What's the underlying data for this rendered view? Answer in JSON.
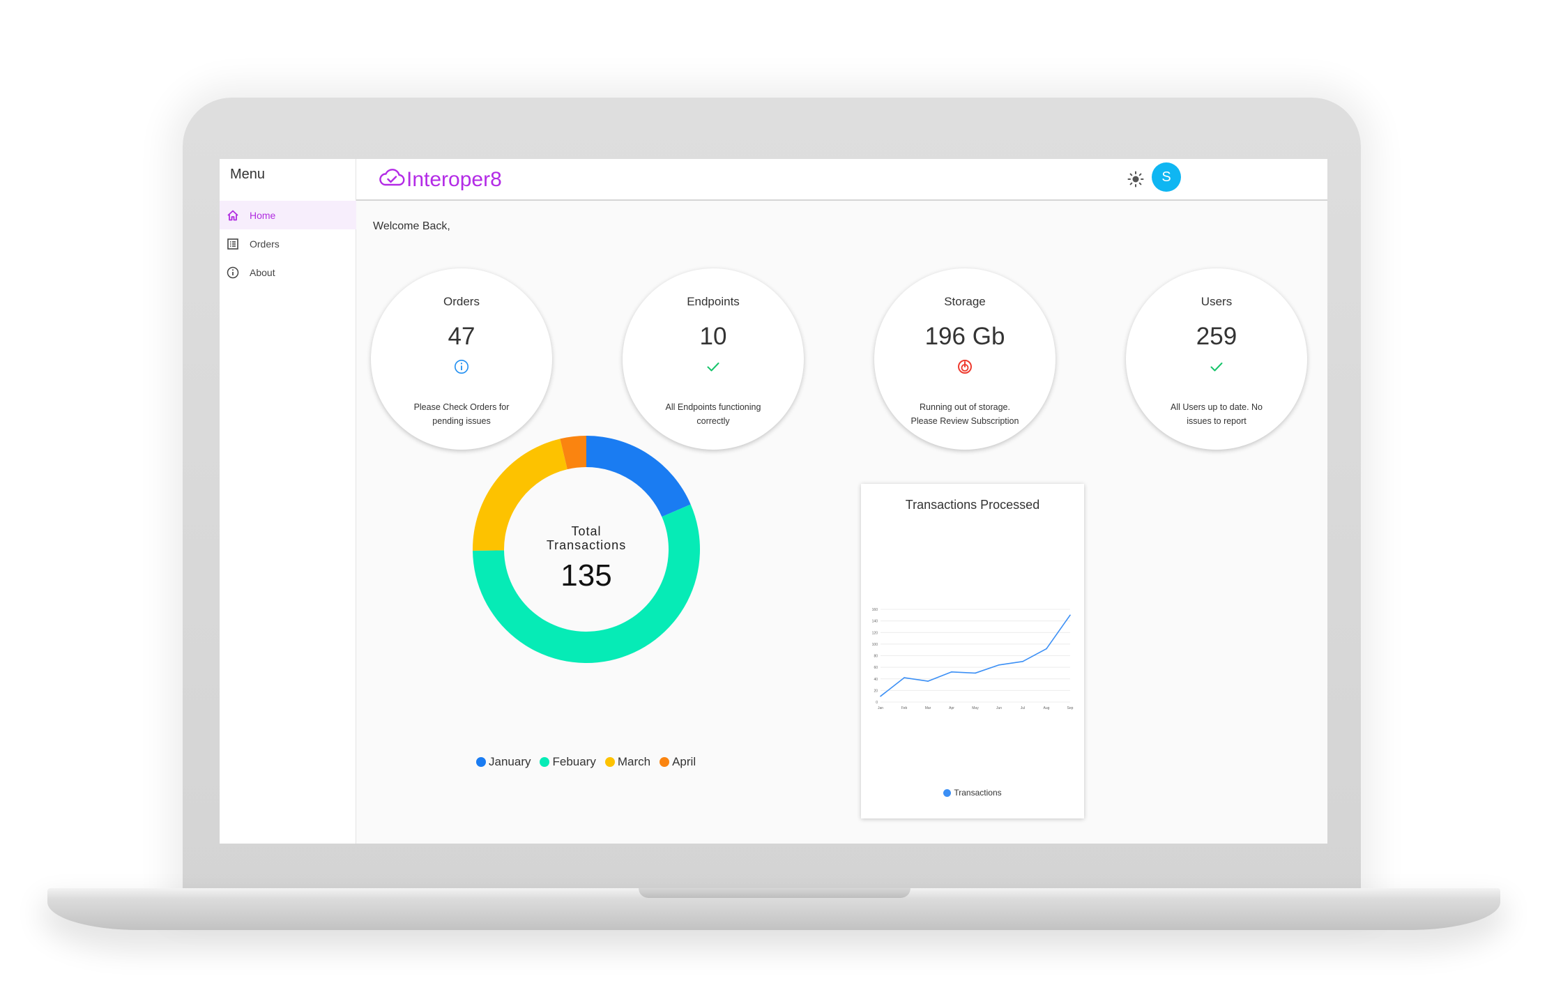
{
  "sidebar": {
    "title": "Menu",
    "items": [
      {
        "label": "Home",
        "icon": "home-icon",
        "active": true
      },
      {
        "label": "Orders",
        "icon": "list-icon",
        "active": false
      },
      {
        "label": "About",
        "icon": "info-icon",
        "active": false
      }
    ]
  },
  "header": {
    "logo_text": "Interoper8",
    "avatar_initial": "S",
    "brand_color": "#b32be6",
    "avatar_color": "#0fb6f2"
  },
  "main": {
    "welcome": "Welcome Back,",
    "stats": [
      {
        "title": "Orders",
        "value": "47",
        "icon": "info-icon",
        "note": "Please Check Orders for pending issues"
      },
      {
        "title": "Endpoints",
        "value": "10",
        "icon": "check-icon",
        "note": "All Endpoints functioning correctly"
      },
      {
        "title": "Storage",
        "value": "196 Gb",
        "icon": "alert-target-icon",
        "note": "Running out of storage. Please Review Subscription"
      },
      {
        "title": "Users",
        "value": "259",
        "icon": "check-icon",
        "note": "All Users up to date. No issues to report"
      }
    ]
  },
  "chart_data": [
    {
      "type": "pie",
      "variant": "donut",
      "center_label": "Total Transactions",
      "center_value": "135",
      "categories": [
        "January",
        "Febuary",
        "March",
        "April"
      ],
      "values": [
        25,
        76,
        29,
        5
      ],
      "colors": [
        "#1a7cf2",
        "#06ebb6",
        "#fdc200",
        "#fa8410"
      ],
      "legend": "bottom"
    },
    {
      "type": "line",
      "title": "Transactions Processed",
      "x": [
        "Jan",
        "Feb",
        "Mar",
        "Apr",
        "May",
        "Jun",
        "Jul",
        "Aug",
        "Sep"
      ],
      "series": [
        {
          "name": "Transactions",
          "values": [
            10,
            42,
            36,
            52,
            50,
            64,
            70,
            92,
            150
          ],
          "color": "#3b8ff5"
        }
      ],
      "yticks": [
        0,
        20,
        40,
        60,
        80,
        100,
        120,
        140,
        160
      ],
      "ylim": [
        0,
        160
      ],
      "grid": true,
      "legend": "bottom"
    }
  ]
}
